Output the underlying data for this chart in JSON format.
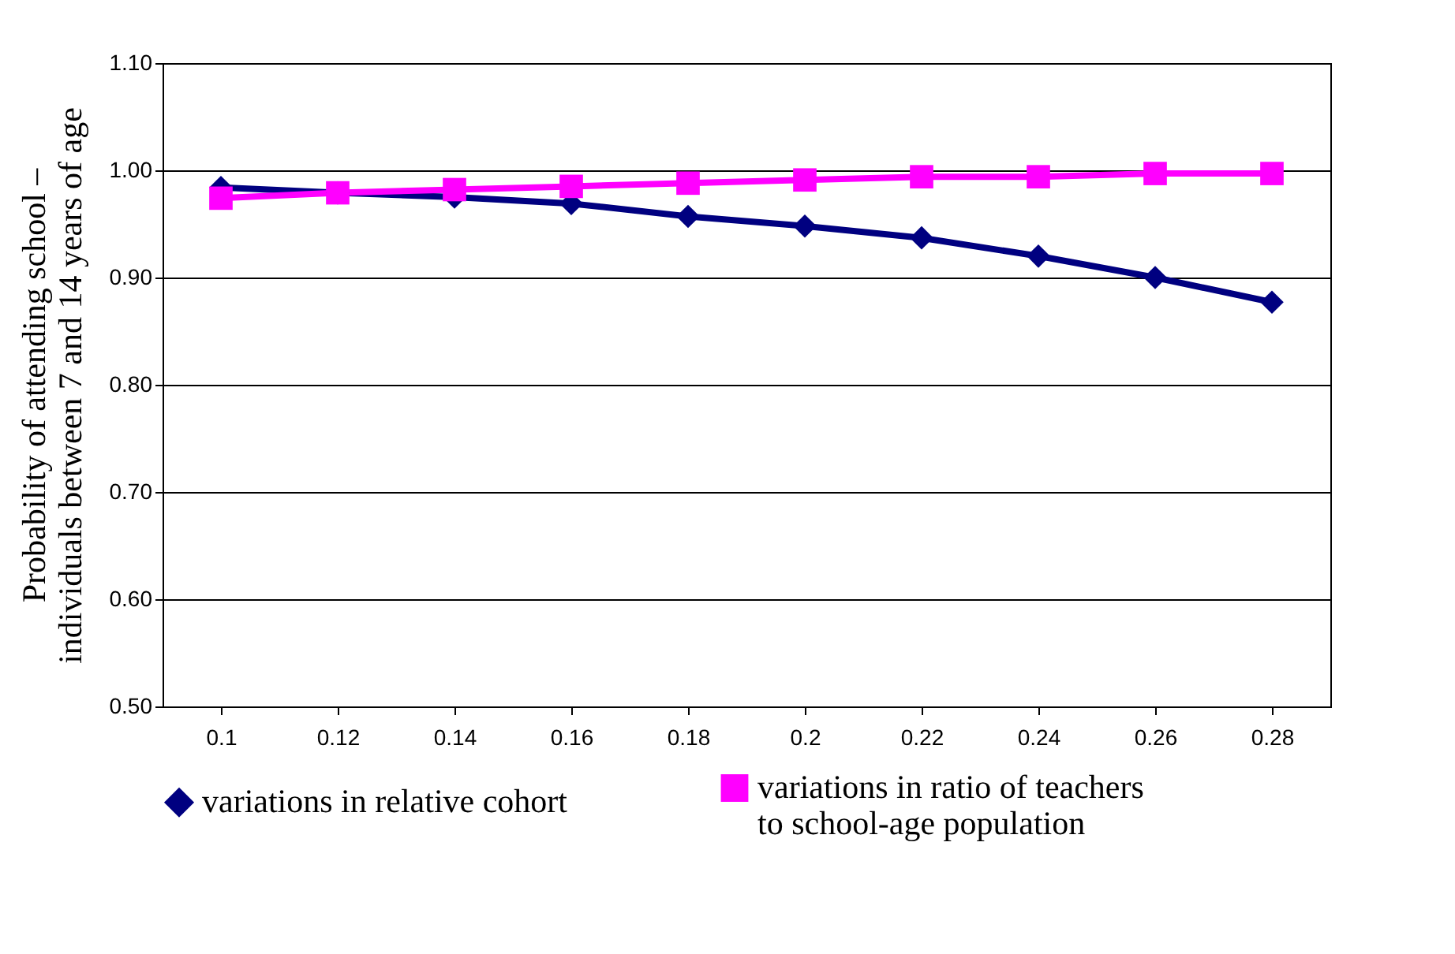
{
  "chart_data": {
    "type": "line",
    "ylabel": "Probability of attending school – individuals between 7 and 14 years of age",
    "categories": [
      "0.1",
      "0.12",
      "0.14",
      "0.16",
      "0.18",
      "0.2",
      "0.22",
      "0.24",
      "0.26",
      "0.28"
    ],
    "series": [
      {
        "name": "variations in relative cohort",
        "color": "#000080",
        "marker": "diamond",
        "values": [
          0.984,
          0.979,
          0.975,
          0.969,
          0.957,
          0.948,
          0.937,
          0.92,
          0.9,
          0.877
        ]
      },
      {
        "name": "variations in ratio of teachers to school-age population",
        "color": "#ff00ff",
        "marker": "square",
        "values": [
          0.974,
          0.979,
          0.982,
          0.985,
          0.988,
          0.991,
          0.994,
          0.994,
          0.997,
          0.997
        ]
      }
    ],
    "ylim": [
      0.5,
      1.1
    ],
    "yticks": [
      {
        "value": 0.5,
        "label": "0.50"
      },
      {
        "value": 0.6,
        "label": "0.60"
      },
      {
        "value": 0.7,
        "label": "0.70"
      },
      {
        "value": 0.8,
        "label": "0.80"
      },
      {
        "value": 0.9,
        "label": "0.90"
      },
      {
        "value": 1.0,
        "label": "1.00"
      },
      {
        "value": 1.1,
        "label": "1.10"
      }
    ],
    "grid": "y",
    "legend": "bottom",
    "line_style": "solid"
  }
}
